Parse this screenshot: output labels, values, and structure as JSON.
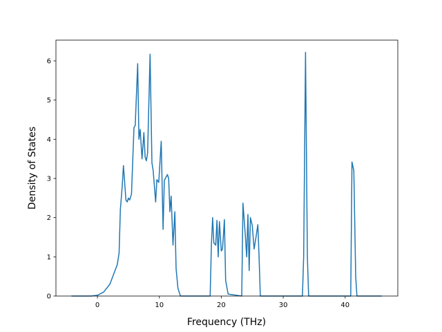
{
  "chart_data": {
    "type": "line",
    "x_label": "Frequency (THz)",
    "y_label": "Density of States",
    "series": [
      {
        "name": "DOS",
        "color": "#1f77b4",
        "x": [
          -4.2,
          -1,
          0,
          1,
          2,
          2.6,
          3.2,
          3.5,
          3.7,
          4.0,
          4.2,
          4.6,
          4.8,
          5.0,
          5.2,
          5.5,
          5.9,
          6.1,
          6.5,
          6.7,
          6.9,
          7.2,
          7.5,
          7.7,
          7.9,
          8.1,
          8.5,
          8.8,
          9.0,
          9.4,
          9.6,
          9.9,
          10.3,
          10.6,
          10.8,
          11.3,
          11.5,
          11.7,
          11.9,
          12.2,
          12.5,
          12.7,
          13.0,
          13.4,
          18.2,
          18.4,
          18.6,
          18.8,
          19.1,
          19.3,
          19.5,
          19.7,
          20.0,
          20.2,
          20.5,
          20.7,
          21.1,
          23.3,
          23.5,
          23.9,
          24.1,
          24.3,
          24.5,
          24.7,
          25.0,
          25.3,
          25.6,
          25.9,
          26.1,
          26.3,
          33.1,
          33.3,
          33.6,
          33.9,
          34.1,
          40.9,
          41.1,
          41.4,
          41.7,
          41.9,
          45.9
        ],
        "values": [
          0,
          0,
          0.02,
          0.1,
          0.3,
          0.55,
          0.8,
          1.1,
          2.2,
          2.8,
          3.33,
          2.45,
          2.4,
          2.5,
          2.45,
          2.6,
          4.3,
          4.35,
          5.93,
          4.0,
          4.25,
          3.5,
          4.17,
          3.55,
          3.45,
          3.65,
          6.17,
          3.4,
          3.2,
          2.4,
          2.97,
          2.9,
          3.95,
          1.7,
          2.95,
          3.1,
          3.0,
          2.15,
          2.55,
          1.3,
          2.15,
          0.7,
          0.2,
          0,
          0,
          1.3,
          2.0,
          1.35,
          1.3,
          1.93,
          1.0,
          1.9,
          1.15,
          1.2,
          1.95,
          0.4,
          0.05,
          0,
          2.37,
          1.5,
          1.0,
          2.08,
          0.65,
          2.0,
          1.8,
          1.2,
          1.5,
          1.82,
          1.0,
          0,
          0,
          1.0,
          6.22,
          1.0,
          0,
          0,
          3.42,
          3.2,
          0.5,
          0,
          0
        ]
      }
    ],
    "xlim": [
      -6.7,
      48.5
    ],
    "xticks": [
      0,
      10,
      20,
      30,
      40
    ],
    "ylim": [
      0,
      6.53
    ],
    "yticks": [
      0,
      1,
      2,
      3,
      4,
      5,
      6
    ]
  }
}
